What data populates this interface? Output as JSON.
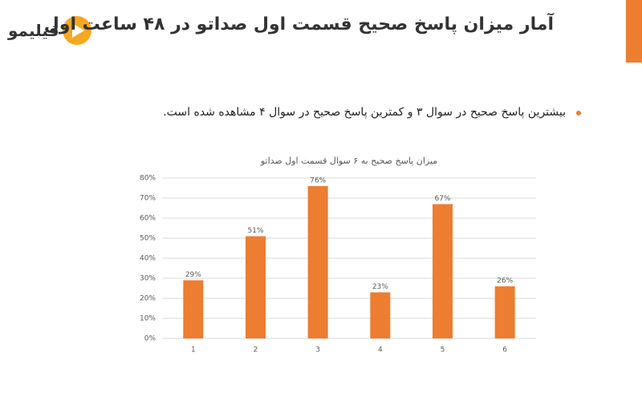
{
  "slide": {
    "logo": "فیلیمو",
    "title": "آمار میزان پاسخ صحیح قسمت اول صداتو در ۴۸ ساعت اول",
    "bullet": "بیشترین پاسخ صحیح در سوال ۳ و کمترین پاسخ  صحیح در سوال ۴ مشاهده شده است."
  },
  "chart_data": {
    "type": "bar",
    "title": "میزان پاسخ صحیح به ۶ سوال قسمت اول صداتو",
    "categories": [
      "1",
      "2",
      "3",
      "4",
      "5",
      "6"
    ],
    "values": [
      29,
      51,
      76,
      23,
      67,
      26
    ],
    "value_labels": [
      "29%",
      "51%",
      "76%",
      "23%",
      "67%",
      "26%"
    ],
    "color": "#ed7d31",
    "ylim": [
      0,
      80
    ],
    "yticks": [
      {
        "value": 0,
        "label": "0%"
      },
      {
        "value": 10,
        "label": "10%"
      },
      {
        "value": 20,
        "label": "20%"
      },
      {
        "value": 30,
        "label": "30%"
      },
      {
        "value": 40,
        "label": "40%"
      },
      {
        "value": 50,
        "label": "50%"
      },
      {
        "value": 60,
        "label": "60%"
      },
      {
        "value": 70,
        "label": "70%"
      },
      {
        "value": 80,
        "label": "80%"
      }
    ],
    "grid": true
  }
}
